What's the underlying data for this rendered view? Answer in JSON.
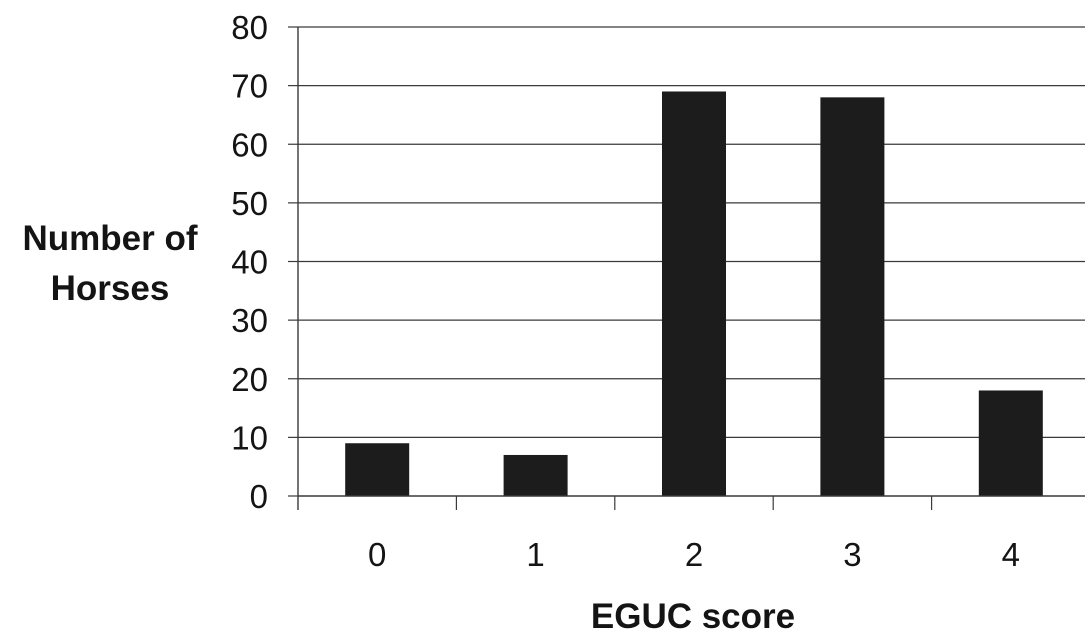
{
  "chart_data": {
    "type": "bar",
    "categories": [
      "0",
      "1",
      "2",
      "3",
      "4"
    ],
    "values": [
      9,
      7,
      69,
      68,
      18
    ],
    "xlabel": "EGUC score",
    "ylabel_lines": [
      "Number of",
      "Horses"
    ],
    "ylim": [
      0,
      80
    ],
    "yticks": [
      "0",
      "10",
      "20",
      "30",
      "40",
      "50",
      "60",
      "70",
      "80"
    ],
    "grid": true,
    "legend": "none",
    "bar_color": "#1c1c1c",
    "grid_color": "#3a3a3a"
  }
}
